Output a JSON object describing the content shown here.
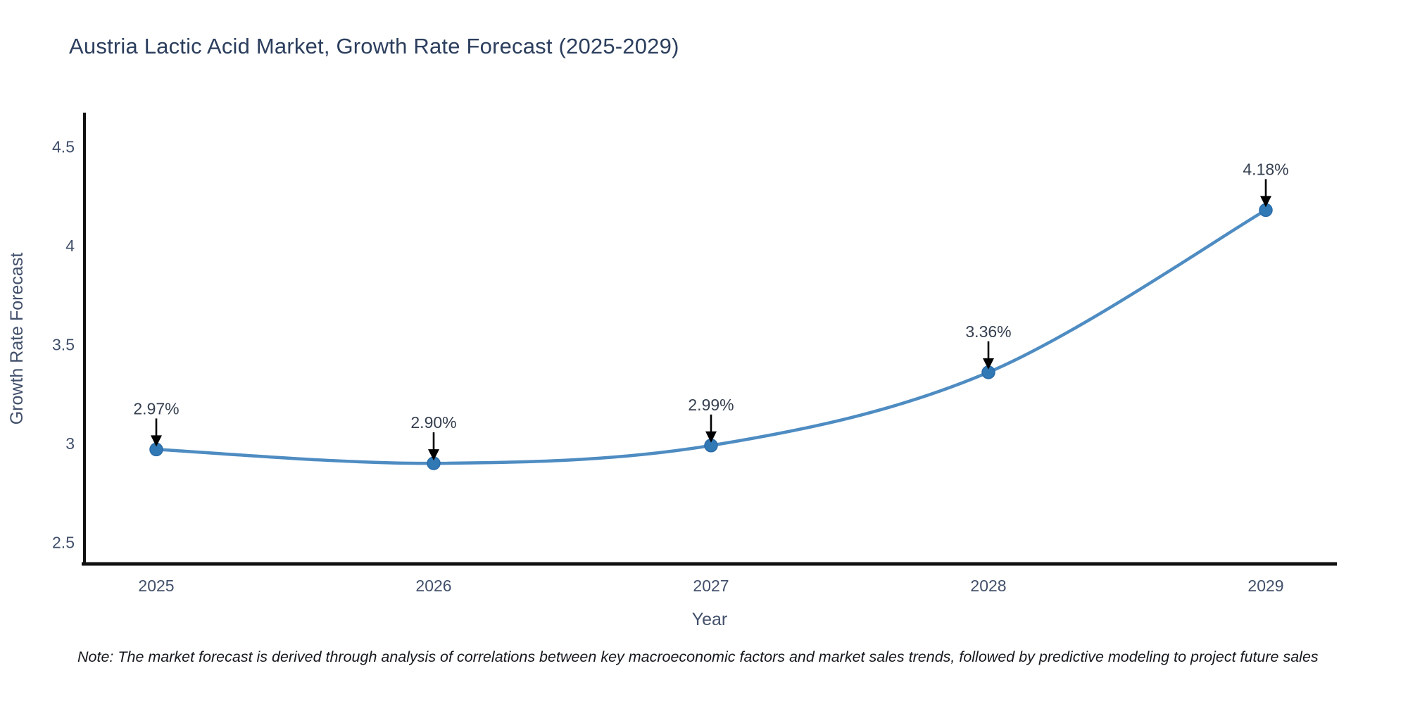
{
  "chart_data": {
    "type": "line",
    "title": "Austria Lactic Acid Market, Growth Rate Forecast (2025-2029)",
    "xlabel": "Year",
    "ylabel": "Growth Rate Forecast",
    "x": [
      2025,
      2026,
      2027,
      2028,
      2029
    ],
    "x_tick_labels": [
      "2025",
      "2026",
      "2027",
      "2028",
      "2029"
    ],
    "series": [
      {
        "name": "Growth Rate Forecast",
        "values": [
          2.97,
          2.9,
          2.99,
          3.36,
          4.18
        ],
        "point_labels": [
          "2.97%",
          "2.90%",
          "2.99%",
          "3.36%",
          "4.18%"
        ]
      }
    ],
    "y_ticks": [
      2.5,
      3,
      3.5,
      4,
      4.5
    ],
    "y_tick_labels": [
      "2.5",
      "3",
      "3.5",
      "4",
      "4.5"
    ],
    "ylim": [
      2.4,
      4.67
    ],
    "grid": false,
    "legend_position": "none",
    "line_shape": "spline",
    "annotation_style": "down-arrow-to-point",
    "note": "Note: The market forecast is derived through analysis of correlations between key macroeconomic factors and market sales trends, followed by predictive modeling to project future sales",
    "colors": {
      "line": "#4e8cc2",
      "marker_fill": "#3079b5",
      "marker_edge": "#2b6ca8",
      "arrow": "#000000",
      "spine": "#111111",
      "title_text": "#2c3e5d",
      "tick_text": "#42506b",
      "annotation_text": "#353f4f",
      "note_text": "#15181e"
    }
  }
}
